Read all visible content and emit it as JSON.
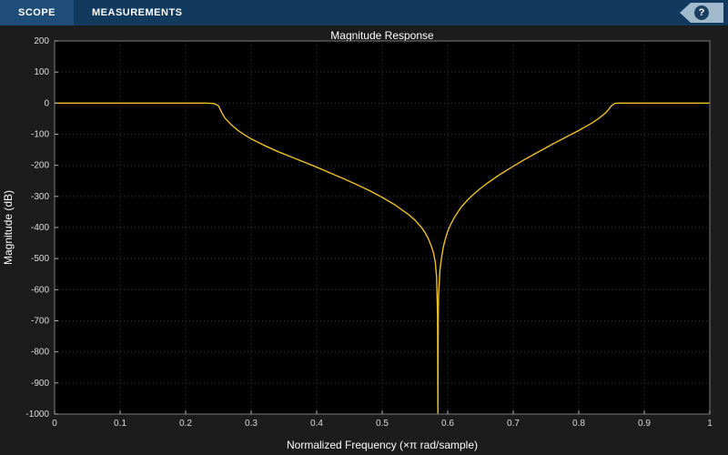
{
  "toolbar": {
    "tabs": [
      {
        "label": "SCOPE",
        "active": true
      },
      {
        "label": "MEASUREMENTS",
        "active": false
      }
    ],
    "help_label": "?"
  },
  "colors": {
    "toolbar_bg": "#123a5e",
    "toolbar_active_bg": "#1d4d78",
    "canvas_bg": "#1c1c1c",
    "axes_bg": "#000000",
    "grid": "#3a3a3a",
    "border": "#7a7a7a",
    "tick": "#b0b0b0",
    "text": "#dcdcdc",
    "line": "#efc120",
    "help_bg": "#9fb9cd"
  },
  "chart_data": {
    "type": "line",
    "title": "Magnitude Response",
    "xlabel": "Normalized Frequency (×π rad/sample)",
    "ylabel": "Magnitude (dB)",
    "xlim": [
      0,
      1
    ],
    "ylim": [
      -1000,
      200
    ],
    "xticks": [
      0,
      0.1,
      0.2,
      0.3,
      0.4,
      0.5,
      0.6,
      0.7,
      0.8,
      0.9,
      1
    ],
    "yticks": [
      200,
      100,
      0,
      -100,
      -200,
      -300,
      -400,
      -500,
      -600,
      -700,
      -800,
      -900,
      -1000
    ],
    "grid": true,
    "legend_position": "none",
    "series": [
      {
        "color": "#efc120",
        "points": [
          [
            0,
            0
          ],
          [
            0.05,
            0
          ],
          [
            0.1,
            0
          ],
          [
            0.15,
            0
          ],
          [
            0.2,
            0
          ],
          [
            0.23,
            0
          ],
          [
            0.243,
            -1
          ],
          [
            0.25,
            -8
          ],
          [
            0.255,
            -30
          ],
          [
            0.26,
            -48
          ],
          [
            0.27,
            -70
          ],
          [
            0.28,
            -88
          ],
          [
            0.29,
            -102
          ],
          [
            0.3,
            -115
          ],
          [
            0.32,
            -136
          ],
          [
            0.34,
            -155
          ],
          [
            0.36,
            -172
          ],
          [
            0.38,
            -189
          ],
          [
            0.4,
            -206
          ],
          [
            0.42,
            -224
          ],
          [
            0.44,
            -242
          ],
          [
            0.46,
            -261
          ],
          [
            0.48,
            -281
          ],
          [
            0.5,
            -303
          ],
          [
            0.52,
            -328
          ],
          [
            0.54,
            -358
          ],
          [
            0.55,
            -376
          ],
          [
            0.56,
            -400
          ],
          [
            0.565,
            -415
          ],
          [
            0.57,
            -434
          ],
          [
            0.575,
            -460
          ],
          [
            0.578,
            -480
          ],
          [
            0.581,
            -510
          ],
          [
            0.583,
            -560
          ],
          [
            0.5845,
            -680
          ],
          [
            0.585,
            -1000
          ],
          [
            0.5855,
            -700
          ],
          [
            0.586,
            -620
          ],
          [
            0.588,
            -540
          ],
          [
            0.59,
            -505
          ],
          [
            0.593,
            -465
          ],
          [
            0.596,
            -440
          ],
          [
            0.6,
            -412
          ],
          [
            0.605,
            -388
          ],
          [
            0.61,
            -368
          ],
          [
            0.62,
            -336
          ],
          [
            0.63,
            -312
          ],
          [
            0.64,
            -292
          ],
          [
            0.65,
            -274
          ],
          [
            0.66,
            -258
          ],
          [
            0.68,
            -229
          ],
          [
            0.7,
            -203
          ],
          [
            0.72,
            -178
          ],
          [
            0.74,
            -155
          ],
          [
            0.76,
            -132
          ],
          [
            0.78,
            -110
          ],
          [
            0.8,
            -88
          ],
          [
            0.81,
            -76
          ],
          [
            0.82,
            -64
          ],
          [
            0.83,
            -50
          ],
          [
            0.84,
            -33
          ],
          [
            0.845,
            -22
          ],
          [
            0.85,
            -8
          ],
          [
            0.855,
            -1
          ],
          [
            0.86,
            0
          ],
          [
            0.9,
            0
          ],
          [
            0.95,
            0
          ],
          [
            1,
            0
          ]
        ]
      }
    ]
  }
}
